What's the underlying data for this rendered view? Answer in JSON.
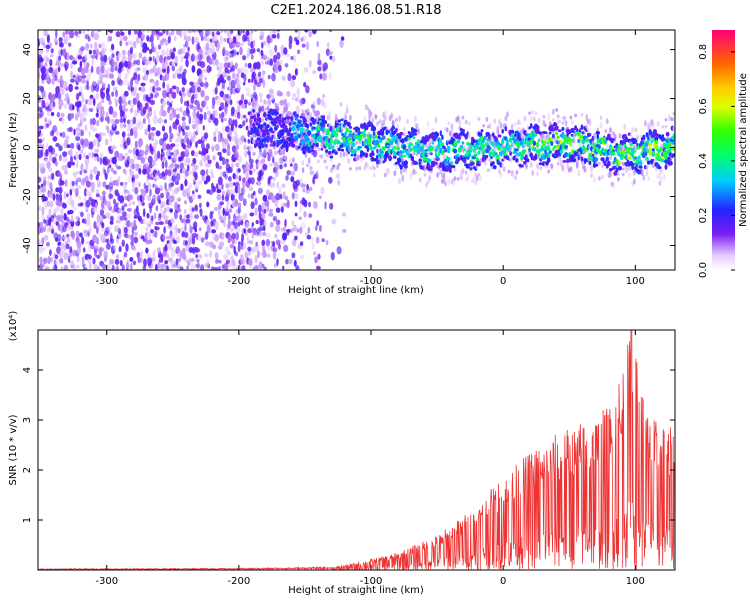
{
  "figure_title": "C2E1.2024.186.08.51.R18",
  "chart_data": [
    {
      "type": "heatmap",
      "name": "spectrogram",
      "xlabel": "Height of straight line (km)",
      "ylabel": "Frequency (Hz)",
      "xlim": [
        -352,
        130
      ],
      "ylim": [
        -50,
        48
      ],
      "x_ticks": [
        -300,
        -200,
        -100,
        0,
        100
      ],
      "x_tick_labels": [
        "-300",
        "-200",
        "-100",
        "0",
        "100"
      ],
      "y_ticks": [
        -40,
        -20,
        0,
        20,
        40
      ],
      "y_tick_labels": [
        "-40",
        "-20",
        "0",
        "20",
        "40"
      ],
      "grid": false,
      "description_of_pattern": {
        "noise_region_x": [
          -352,
          -135
        ],
        "signal_band_x": [
          -190,
          130
        ],
        "signal_center_frequency_hz": [
          {
            "x": -190,
            "f": 8
          },
          {
            "x": -150,
            "f": 6
          },
          {
            "x": -100,
            "f": 2
          },
          {
            "x": -50,
            "f": -2
          },
          {
            "x": 0,
            "f": 0
          },
          {
            "x": 50,
            "f": 2
          },
          {
            "x": 90,
            "f": -3
          },
          {
            "x": 130,
            "f": 0
          }
        ]
      },
      "colorbar": {
        "label": "Normalized spectral amplitude",
        "range": [
          0,
          0.88
        ],
        "ticks": [
          0.0,
          0.2,
          0.4,
          0.6,
          0.8
        ],
        "tick_labels": [
          "0.0",
          "0.2",
          "0.4",
          "0.6",
          "0.8"
        ]
      }
    },
    {
      "type": "line",
      "name": "snr",
      "xlabel": "Height of straight line (km)",
      "ylabel": "SNR (10 * v/v)",
      "y_scale_label": "(x10⁴)",
      "xlim": [
        -352,
        130
      ],
      "ylim": [
        0,
        4.8
      ],
      "x_ticks": [
        -300,
        -200,
        -100,
        0,
        100
      ],
      "x_tick_labels": [
        "-300",
        "-200",
        "-100",
        "0",
        "100"
      ],
      "y_ticks": [
        1,
        2,
        3,
        4
      ],
      "y_tick_labels": [
        "1",
        "2",
        "3",
        "4"
      ],
      "grid": false,
      "line_color": "#ee3333",
      "envelope": [
        {
          "x": -352,
          "y": 0.02
        },
        {
          "x": -200,
          "y": 0.03
        },
        {
          "x": -130,
          "y": 0.05
        },
        {
          "x": -110,
          "y": 0.15
        },
        {
          "x": -80,
          "y": 0.35
        },
        {
          "x": -50,
          "y": 0.7
        },
        {
          "x": -20,
          "y": 1.3
        },
        {
          "x": 0,
          "y": 1.9
        },
        {
          "x": 30,
          "y": 2.6
        },
        {
          "x": 60,
          "y": 3.0
        },
        {
          "x": 80,
          "y": 3.3
        },
        {
          "x": 97,
          "y": 4.8
        },
        {
          "x": 110,
          "y": 3.1
        },
        {
          "x": 130,
          "y": 2.8
        }
      ]
    }
  ],
  "colors": {
    "snr_line": "#ee3333",
    "noise_purple": "#7a1ff0",
    "background": "#ffffff"
  }
}
